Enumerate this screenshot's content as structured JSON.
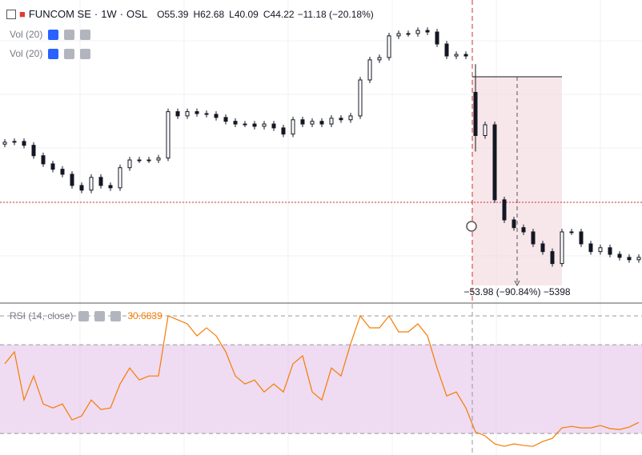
{
  "chart_data": {
    "type": "candlestick",
    "symbol": "FUNCOM SE",
    "interval": "1W",
    "exchange": "OSL",
    "ohlc_header": [
      {
        "label": "O",
        "value": 55.39
      },
      {
        "label": "H",
        "value": 62.68
      },
      {
        "label": "L",
        "value": 40.09
      },
      {
        "label": "C",
        "value": 44.22
      }
    ],
    "change": "−11.18 (−20.18%)",
    "volume_indicators": [
      "Vol (20)",
      "Vol (20)"
    ],
    "ylim": [
      1.09,
      79.28
    ],
    "color": "#131722",
    "open": [
      42.0,
      42.5,
      42.7,
      41.7,
      39.0,
      36.9,
      35.5,
      34.2,
      31.3,
      30.1,
      33.4,
      31.3,
      30.7,
      35.9,
      37.9,
      37.9,
      37.9,
      38.4,
      50.4,
      49.3,
      50.4,
      49.9,
      49.7,
      48.9,
      47.9,
      47.2,
      47.2,
      46.6,
      47.2,
      46.2,
      44.6,
      48.3,
      47.2,
      47.9,
      47.2,
      48.7,
      48.3,
      49.3,
      58.6,
      63.8,
      64.4,
      70.0,
      70.6,
      70.6,
      71.4,
      71.0,
      67.9,
      64.8,
      65.2,
      55.39,
      44.22,
      47.0,
      27.6,
      22.4,
      20.4,
      19.3,
      16.2,
      14.2,
      11.1,
      19.3,
      19.3,
      16.2,
      14.2,
      15.2,
      13.5,
      12.7,
      12.1
    ],
    "high": [
      43.3,
      43.5,
      43.5,
      42.5,
      39.8,
      37.7,
      36.3,
      35.0,
      32.1,
      34.2,
      34.2,
      32.1,
      36.7,
      38.7,
      38.7,
      38.7,
      39.2,
      51.2,
      51.2,
      51.2,
      51.2,
      50.7,
      50.5,
      49.7,
      48.7,
      48.0,
      48.0,
      48.0,
      48.0,
      47.0,
      49.1,
      49.1,
      48.7,
      48.7,
      49.5,
      49.5,
      50.1,
      59.4,
      64.6,
      65.2,
      70.8,
      71.4,
      71.4,
      72.2,
      72.2,
      71.8,
      68.7,
      66.0,
      66.0,
      62.68,
      47.8,
      47.8,
      28.4,
      23.2,
      21.2,
      20.1,
      17.0,
      15.0,
      20.1,
      20.1,
      20.1,
      17.0,
      16.0,
      16.0,
      14.3,
      13.5,
      13.5
    ],
    "low": [
      41.2,
      41.7,
      40.9,
      38.2,
      36.1,
      34.7,
      33.4,
      30.5,
      29.3,
      29.3,
      30.5,
      29.9,
      29.9,
      35.1,
      37.1,
      37.1,
      37.1,
      37.6,
      48.5,
      48.5,
      49.1,
      48.9,
      48.1,
      47.1,
      46.4,
      46.4,
      45.8,
      45.8,
      45.4,
      43.8,
      43.8,
      46.4,
      46.4,
      46.4,
      46.4,
      47.5,
      47.5,
      48.5,
      57.8,
      63.0,
      63.6,
      69.2,
      69.8,
      69.8,
      70.2,
      67.1,
      64.0,
      64.0,
      64.0,
      40.09,
      43.4,
      26.8,
      21.6,
      19.6,
      18.5,
      15.4,
      13.4,
      10.3,
      10.3,
      18.5,
      15.4,
      13.4,
      13.4,
      12.7,
      11.9,
      11.3,
      11.3
    ],
    "close": [
      42.5,
      42.7,
      41.7,
      39.0,
      36.9,
      35.5,
      34.2,
      31.3,
      30.1,
      33.4,
      31.3,
      30.7,
      35.9,
      37.9,
      37.9,
      37.9,
      38.4,
      50.4,
      49.3,
      50.4,
      49.9,
      49.7,
      48.9,
      47.9,
      47.2,
      47.2,
      46.6,
      47.2,
      46.2,
      44.6,
      48.3,
      47.2,
      47.9,
      47.2,
      48.7,
      48.3,
      49.3,
      58.6,
      63.8,
      64.4,
      70.0,
      70.6,
      70.6,
      71.4,
      71.0,
      67.9,
      64.8,
      65.2,
      64.8,
      44.22,
      47.0,
      27.6,
      22.4,
      20.4,
      19.3,
      16.2,
      14.2,
      11.1,
      19.3,
      19.3,
      16.2,
      14.2,
      15.2,
      13.5,
      12.7,
      12.1,
      12.7
    ],
    "measure": {
      "from": 59.42,
      "to": 5.44,
      "label": "−53.98 (−90.84%) −5398",
      "color": "#f0d0d8"
    },
    "rsi": {
      "name": "RSI (14, close)",
      "color": "#f57c00",
      "last": 30.6839,
      "ylim": [
        20.3,
        88.4
      ],
      "bands": [
        30,
        70
      ],
      "band_color": "#e1bee7",
      "values": [
        61.4,
        66.8,
        45.1,
        55.9,
        43.3,
        41.5,
        43.3,
        36.1,
        37.9,
        45.1,
        40.8,
        41.5,
        52.3,
        59.5,
        54.1,
        55.9,
        55.9,
        83.0,
        81.2,
        79.4,
        74.0,
        77.6,
        74.0,
        66.8,
        55.9,
        52.3,
        54.1,
        48.7,
        52.3,
        48.7,
        61.4,
        65.0,
        48.7,
        45.1,
        59.5,
        55.9,
        70.4,
        83.0,
        77.6,
        77.6,
        83.0,
        75.8,
        75.8,
        79.4,
        74.0,
        59.5,
        46.9,
        48.7,
        41.5,
        30.6839,
        28.9,
        25.3,
        24.2,
        25.3,
        24.6,
        24.2,
        26.4,
        27.8,
        32.5,
        33.2,
        32.5,
        32.5,
        33.6,
        32.2,
        31.8,
        32.9,
        35.0
      ]
    }
  }
}
